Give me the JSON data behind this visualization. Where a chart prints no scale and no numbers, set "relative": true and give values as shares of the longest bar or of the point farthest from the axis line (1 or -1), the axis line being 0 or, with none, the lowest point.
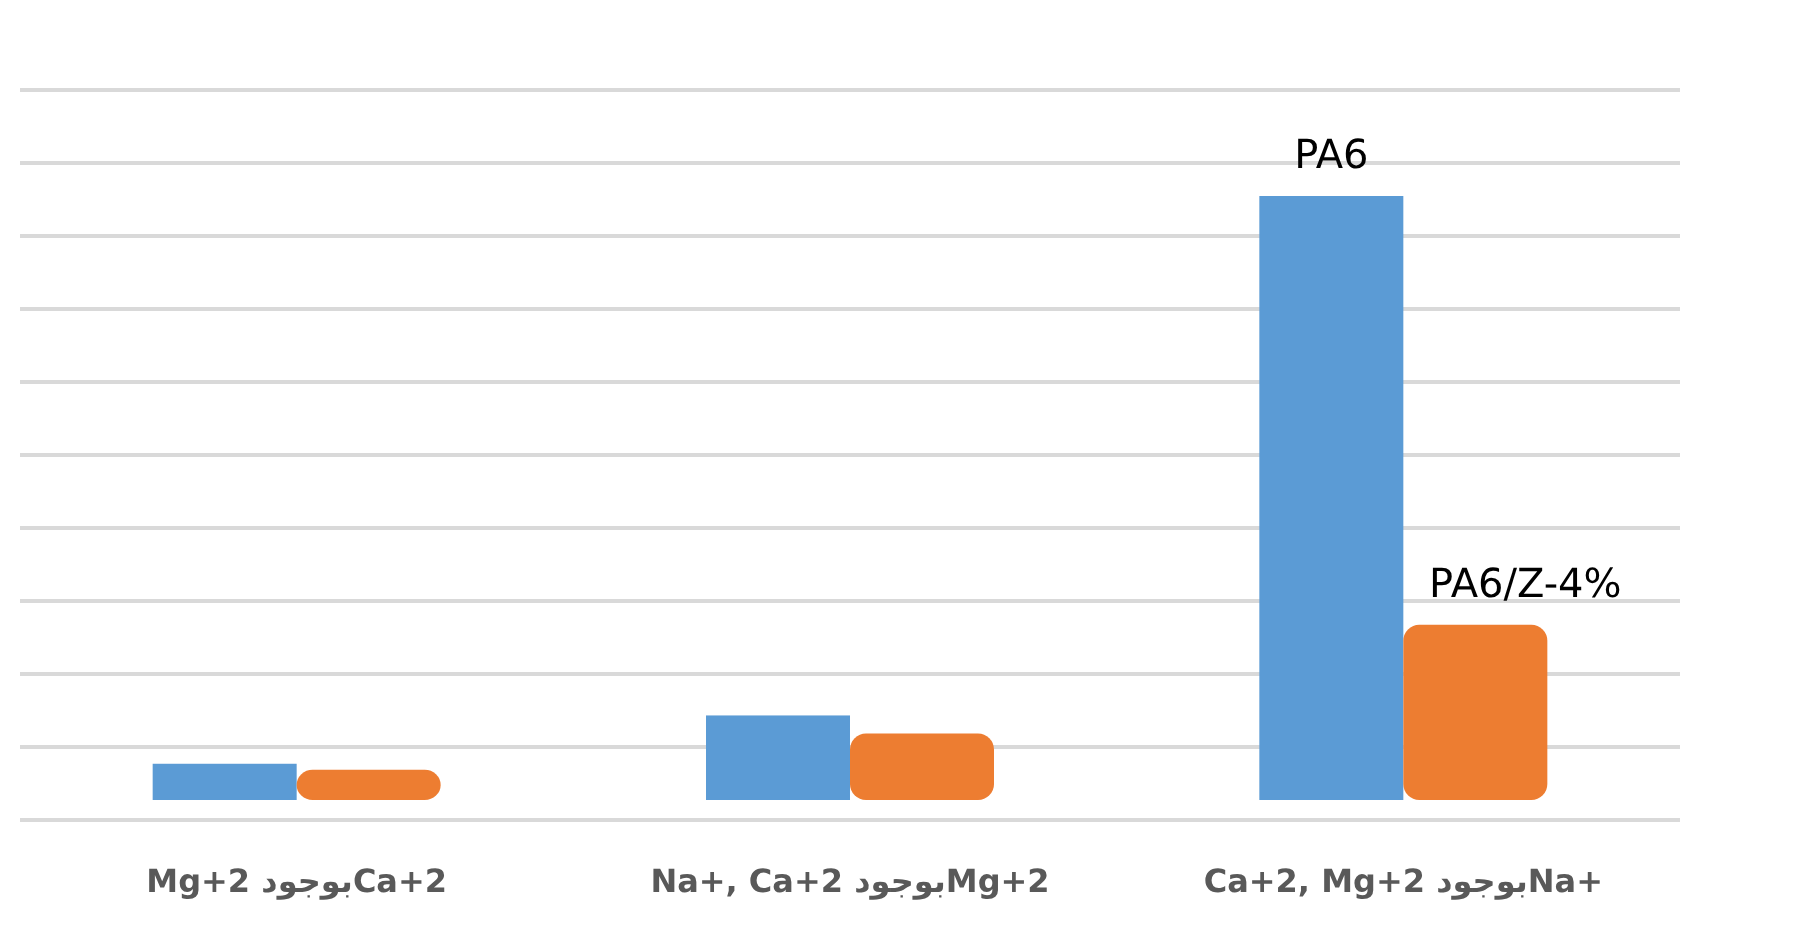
{
  "chart_data": {
    "type": "bar",
    "relative": true,
    "grid": "y",
    "categories": [
      "Mg+2  بوجودCa+2",
      "Na+, Ca+2  بوجودMg+2",
      "Ca+2, Mg+2  بوجودNa+"
    ],
    "series": [
      {
        "name": "PA6",
        "color": "#5b9bd5",
        "values": [
          0.06,
          0.14,
          1
        ]
      },
      {
        "name": "PA6/Z-4%",
        "color": "#ed7d31",
        "values": [
          0.05,
          0.11,
          0.29
        ]
      }
    ]
  }
}
